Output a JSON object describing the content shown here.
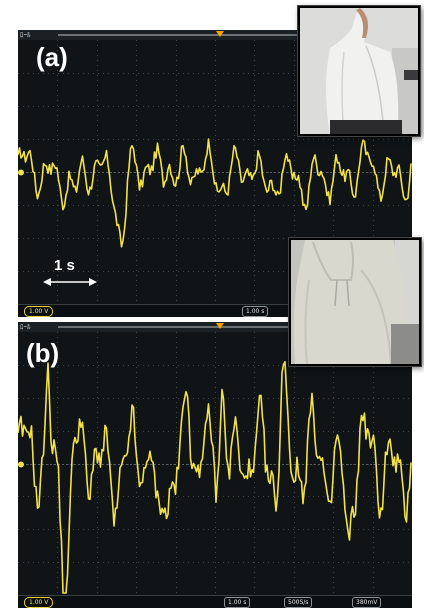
{
  "panel_a": {
    "label": "(a)",
    "scale_label": "1 s",
    "menu_text": "ﾛｰﾙ",
    "channel_scale": "1.00 V",
    "timebase": "1.00 s"
  },
  "panel_b": {
    "label": "(b)",
    "menu_text": "ﾛｰﾙ",
    "channel_scale": "1.00 V",
    "timebase": "1.00 s",
    "sample_rate": "500S/s",
    "extra_readout": "380mV"
  },
  "colors": {
    "trace": "#f2e24a",
    "screen": "#101416",
    "grid": "#3d4346",
    "label": "#ffffff"
  },
  "icons": {
    "arrow": "double-headed-arrow",
    "trigger": "trigger-marker-icon",
    "channel_marker": "ground-marker-icon"
  }
}
